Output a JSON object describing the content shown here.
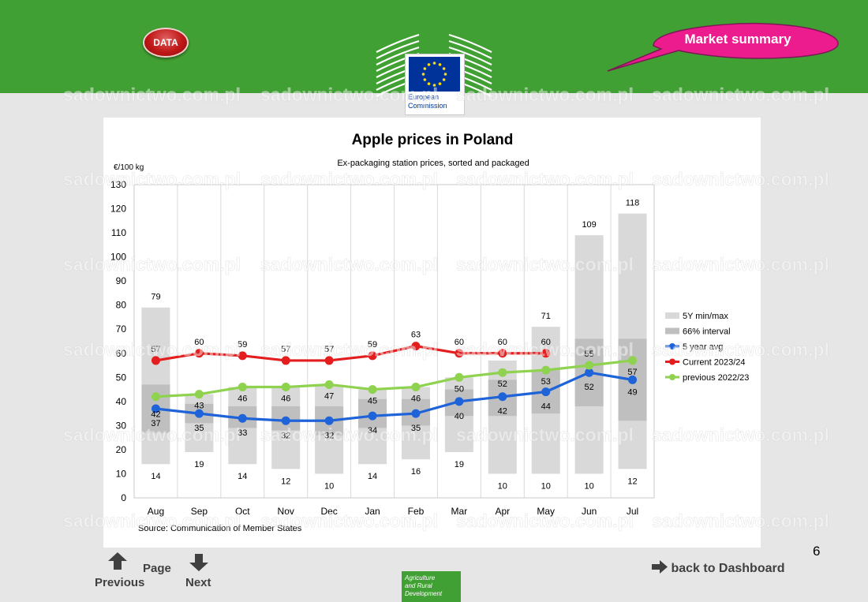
{
  "header": {
    "data_button": "DATA",
    "market_summary": "Market summary",
    "ec_name_line1": "European",
    "ec_name_line2": "Commission"
  },
  "watermark": "sadownictwo.com.pl",
  "chart_data": {
    "type": "bar",
    "title": "Apple prices in Poland",
    "subtitle": "Ex-packaging station prices, sorted and packaged",
    "ylabel": "€/100 kg",
    "ylim": [
      0,
      130
    ],
    "yticks": [
      0,
      10,
      20,
      30,
      40,
      50,
      60,
      70,
      80,
      90,
      100,
      110,
      120,
      130
    ],
    "categories": [
      "Aug",
      "Sep",
      "Oct",
      "Nov",
      "Dec",
      "Jan",
      "Feb",
      "Mar",
      "Apr",
      "May",
      "Jun",
      "Jul"
    ],
    "range_min": [
      14,
      19,
      14,
      12,
      10,
      14,
      16,
      19,
      10,
      10,
      10,
      12
    ],
    "range_max": [
      79,
      43,
      46,
      46,
      47,
      45,
      46,
      50,
      57,
      71,
      109,
      118
    ],
    "interval_low": [
      27,
      31,
      29,
      28,
      26,
      29,
      30,
      34,
      34,
      35,
      38,
      32
    ],
    "interval_high": [
      47,
      39,
      38,
      38,
      38,
      41,
      41,
      45,
      49,
      53,
      66,
      66
    ],
    "series": [
      {
        "name": "5 year avg",
        "color": "#1f63d9",
        "values": [
          37,
          35,
          33,
          32,
          32,
          34,
          35,
          40,
          42,
          44,
          52,
          49
        ]
      },
      {
        "name": "Current 2023/24",
        "color": "#e41e1e",
        "values": [
          57,
          60,
          59,
          57,
          57,
          59,
          63,
          60,
          60,
          60,
          null,
          null
        ]
      },
      {
        "name": "previous 2022/23",
        "color": "#8fd24f",
        "values": [
          42,
          43,
          46,
          46,
          47,
          45,
          46,
          50,
          52,
          53,
          55,
          57
        ]
      }
    ],
    "legend": [
      "5Y min/max",
      "66% interval",
      "5 year avg",
      "Current 2023/24",
      "previous 2022/23"
    ],
    "legend_position": "right",
    "grid": "vertical",
    "source": "Source: Communication of Member States",
    "data_labels": [
      {
        "category": "Aug",
        "max": "79",
        "current": "57",
        "previous": "42",
        "avg": "37",
        "min": "14"
      },
      {
        "category": "Sep",
        "current": "60",
        "previous": "43",
        "avg": "35",
        "min": "19"
      },
      {
        "category": "Oct",
        "current": "59",
        "previous": "46",
        "avg": "33",
        "min": "14"
      },
      {
        "category": "Nov",
        "current": "57",
        "previous": "46",
        "avg": "32",
        "min": "12"
      },
      {
        "category": "Dec",
        "current": "57",
        "previous": "47",
        "avg": "32",
        "min": "10"
      },
      {
        "category": "Jan",
        "current": "59",
        "previous": "45",
        "avg": "34",
        "min": "14"
      },
      {
        "category": "Feb",
        "current": "63",
        "previous": "46",
        "avg": "35",
        "min": "16"
      },
      {
        "category": "Mar",
        "current": "60",
        "previous": "50",
        "avg": "40",
        "min": "19"
      },
      {
        "category": "Apr",
        "current": "60",
        "previous": "52",
        "avg": "42",
        "min": "10"
      },
      {
        "category": "May",
        "max": "71",
        "current": "60",
        "previous": "53",
        "avg": "44",
        "min": "10"
      },
      {
        "category": "Jun",
        "max": "109",
        "previous": "55",
        "avg": "52",
        "min": "10"
      },
      {
        "category": "Jul",
        "max": "118",
        "previous": "57",
        "avg": "49",
        "min": "12"
      }
    ]
  },
  "footer": {
    "previous": "Previous",
    "page": "Page",
    "next": "Next",
    "back_to_dashboard": "back to Dashboard",
    "page_number": "6",
    "dg_line1": "Agriculture",
    "dg_line2": "and Rural",
    "dg_line3": "Development"
  }
}
